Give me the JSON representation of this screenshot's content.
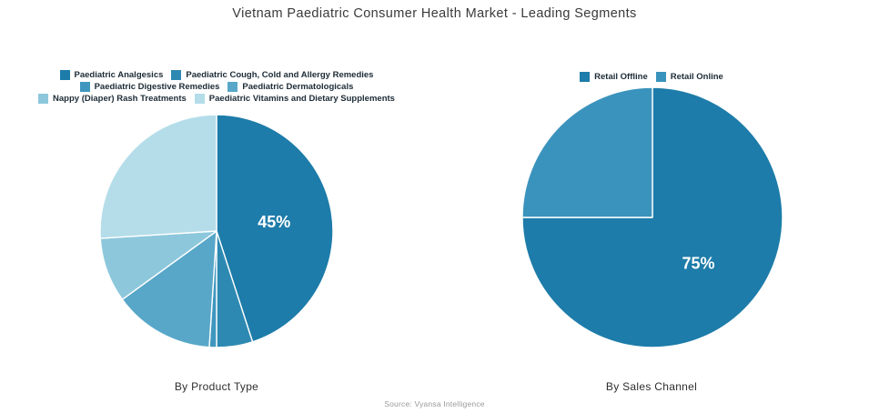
{
  "page": {
    "title": "Vietnam Paediatric Consumer Health Market - Leading Segments",
    "source": "Source: Vyansa Intelligence"
  },
  "chart_data": [
    {
      "type": "pie",
      "title": "By Product Type",
      "labels": [
        "Paediatric Analgesics",
        "Paediatric Cough, Cold and Allergy Remedies",
        "Paediatric Digestive Remedies",
        "Paediatric Dermatologicals",
        "Nappy (Diaper) Rash Treatments",
        "Paediatric Vitamins and Dietary Supplements"
      ],
      "values": [
        45,
        5,
        1,
        14,
        9,
        26
      ],
      "colors": [
        "#1d7ca9",
        "#2e89b2",
        "#3f97bf",
        "#58a7c9",
        "#8dc7dc",
        "#b4dde9"
      ],
      "shown_labels": [
        "45%",
        "",
        "",
        "",
        "",
        ""
      ],
      "start_angle_deg": 0,
      "direction": "clockwise",
      "legend_position": "top",
      "slice_border_color": "#ffffff"
    },
    {
      "type": "pie",
      "title": "By Sales Channel",
      "labels": [
        "Retail Offline",
        "Retail Online"
      ],
      "values": [
        75,
        25
      ],
      "colors": [
        "#1d7ca9",
        "#3a93bc"
      ],
      "shown_labels": [
        "75%",
        ""
      ],
      "start_angle_deg": 0,
      "direction": "clockwise",
      "legend_position": "top",
      "slice_border_color": "#ffffff"
    }
  ]
}
